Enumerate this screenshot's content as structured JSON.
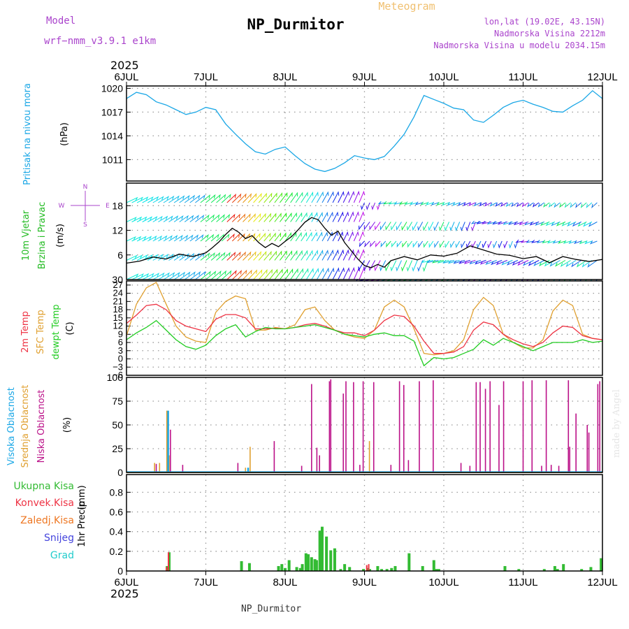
{
  "header": {
    "model_label": "Model",
    "model_name": "wrf−nmm_v3.9.1  e1km",
    "title": "NP_Durmitor",
    "chart_kind": "Meteogram",
    "lonlat": "lon,lat (19.02E, 43.15N)",
    "altitude": "Nadmorska Visina 2212m",
    "altitude_model": "Nadmorska Visina u modelu 2034.15m",
    "footer_station": "NP_Durmitor",
    "credit": "made by Angel"
  },
  "colors": {
    "pressure": "#1aa7e6",
    "wind_speed_label": "#22bb22",
    "temp2m": "#ee3344",
    "sfc": "#e0a030",
    "dewpt": "#22cc22",
    "high_cloud": "#1aa7e6",
    "mid_cloud": "#e0a030",
    "low_cloud": "#bb1188",
    "total_precip": "#33bb33",
    "conv_precip": "#ee3344",
    "frozen": "#ee7722",
    "snow": "#4444dd",
    "hail": "#22cccc",
    "purple_text": "#aa44cc",
    "title_orange": "#f0c070"
  },
  "chart_data": [
    {
      "panel": "pressure",
      "type": "line",
      "year": "2025",
      "x_ticks": [
        "6JUL",
        "7JUL",
        "8JUL",
        "9JUL",
        "10JUL",
        "11JUL",
        "12JUL"
      ],
      "ylabel_title": "Pritisak na nivou mora",
      "ylabel_unit": "(hPa)",
      "ylim": [
        1008.3,
        1020.3
      ],
      "y_ticks": [
        1011,
        1014,
        1017,
        1020
      ],
      "grid": true,
      "series": [
        {
          "name": "Pritisak na nivou mora",
          "x": [
            0,
            3,
            6,
            9,
            12,
            15,
            18,
            21,
            24,
            27,
            30,
            33,
            36,
            39,
            42,
            45,
            48,
            51,
            54,
            57,
            60,
            63,
            66,
            69,
            72,
            75,
            78,
            81,
            84,
            87,
            90,
            93,
            96,
            99,
            102,
            105,
            108,
            111,
            114,
            117,
            120,
            123,
            126,
            129,
            132,
            135,
            138,
            141,
            144
          ],
          "values": [
            1018.7,
            1019.5,
            1019.2,
            1018.3,
            1017.9,
            1017.3,
            1016.7,
            1017.0,
            1017.6,
            1017.3,
            1015.5,
            1014.2,
            1013.0,
            1012.0,
            1011.7,
            1012.3,
            1012.6,
            1011.5,
            1010.5,
            1009.8,
            1009.5,
            1009.9,
            1010.6,
            1011.5,
            1011.2,
            1011.0,
            1011.4,
            1012.7,
            1014.2,
            1016.4,
            1019.1,
            1018.6,
            1018.1,
            1017.5,
            1017.3,
            1016.0,
            1015.7,
            1016.6,
            1017.6,
            1018.2,
            1018.5,
            1018.0,
            1017.6,
            1017.1,
            1017.0,
            1017.8,
            1018.5,
            1019.7,
            1018.7
          ]
        }
      ]
    },
    {
      "panel": "wind",
      "type": "line",
      "ylabel_title": "10m Vjetar",
      "ylabel_sub": "Brzina i Pravac",
      "ylabel_unit": "(m/s)",
      "ylim": [
        0,
        23.5
      ],
      "y_ticks": [
        6,
        12,
        18
      ],
      "y_tick_bottom": "30",
      "compass": [
        "N",
        "W",
        "E",
        "S"
      ],
      "grid": true,
      "series": [
        {
          "name": "Brzina",
          "x": [
            0,
            4,
            8,
            12,
            16,
            20,
            24,
            26,
            28,
            30,
            32,
            34,
            36,
            38,
            40,
            42,
            44,
            46,
            48,
            50,
            52,
            54,
            56,
            58,
            60,
            62,
            64,
            66,
            68,
            70,
            72,
            74,
            76,
            78,
            80,
            84,
            88,
            92,
            96,
            100,
            104,
            108,
            112,
            116,
            120,
            124,
            128,
            132,
            136,
            140,
            144
          ],
          "values": [
            4.0,
            4.5,
            5.5,
            5.0,
            6.2,
            5.6,
            6.5,
            7.8,
            9.2,
            11.0,
            12.5,
            11.5,
            10.0,
            10.7,
            9.0,
            7.8,
            8.8,
            8.0,
            9.3,
            10.5,
            12.2,
            14.0,
            15.1,
            14.6,
            12.5,
            10.8,
            11.8,
            9.0,
            7.0,
            5.0,
            3.4,
            2.9,
            3.7,
            3.0,
            4.6,
            5.6,
            4.8,
            6.0,
            5.7,
            6.4,
            8.2,
            7.2,
            6.2,
            5.9,
            5.1,
            5.6,
            4.1,
            5.6,
            4.9,
            4.4,
            4.9
          ]
        }
      ]
    },
    {
      "panel": "temperature",
      "type": "line",
      "ylabel_titles": [
        "2m Temp",
        "SFC Temp",
        "dewpt Temp"
      ],
      "ylabel_unit": "(C)",
      "ylim": [
        -6,
        28.5
      ],
      "y_ticks": [
        -6,
        -3,
        0,
        3,
        6,
        9,
        12,
        15,
        18,
        21,
        24,
        27
      ],
      "grid": true,
      "series": [
        {
          "name": "2m Temp",
          "x": [
            0,
            3,
            6,
            9,
            12,
            15,
            18,
            21,
            24,
            27,
            30,
            33,
            36,
            39,
            42,
            45,
            48,
            51,
            54,
            57,
            60,
            63,
            66,
            69,
            72,
            75,
            78,
            81,
            84,
            87,
            90,
            93,
            96,
            99,
            102,
            105,
            108,
            111,
            114,
            117,
            120,
            123,
            126,
            129,
            132,
            135,
            138,
            141,
            144
          ],
          "values": [
            13.0,
            16.0,
            19.5,
            20.0,
            18.0,
            14.0,
            12.0,
            11.0,
            10.0,
            14.5,
            16.2,
            16.2,
            15.0,
            11.0,
            11.0,
            11.2,
            11.0,
            11.5,
            12.5,
            13.0,
            12.0,
            10.5,
            9.5,
            9.5,
            8.5,
            10.5,
            14.0,
            16.0,
            15.5,
            12.0,
            6.5,
            2.0,
            2.0,
            2.5,
            4.5,
            10.5,
            13.5,
            12.5,
            9.0,
            7.0,
            5.5,
            4.5,
            6.0,
            9.5,
            12.0,
            11.5,
            8.5,
            7.5,
            7.0
          ]
        },
        {
          "name": "SFC Temp",
          "x": [
            0,
            3,
            6,
            9,
            12,
            15,
            18,
            21,
            24,
            27,
            30,
            33,
            36,
            39,
            42,
            45,
            48,
            51,
            54,
            57,
            60,
            63,
            66,
            69,
            72,
            75,
            78,
            81,
            84,
            87,
            90,
            93,
            96,
            99,
            102,
            105,
            108,
            111,
            114,
            117,
            120,
            123,
            126,
            129,
            132,
            135,
            138,
            141,
            144
          ],
          "values": [
            8.5,
            20.0,
            26.0,
            28.0,
            20.0,
            12.0,
            8.0,
            6.5,
            6.0,
            17.0,
            21.0,
            23.0,
            22.0,
            10.5,
            10.5,
            11.5,
            11.0,
            12.5,
            18.0,
            19.0,
            14.0,
            10.5,
            9.0,
            8.0,
            7.5,
            10.5,
            19.0,
            21.5,
            19.0,
            11.0,
            2.0,
            1.5,
            2.0,
            3.0,
            7.0,
            18.0,
            22.5,
            19.5,
            9.0,
            6.0,
            4.0,
            4.0,
            7.0,
            17.5,
            21.5,
            19.5,
            9.0,
            7.5,
            7.0
          ]
        },
        {
          "name": "dewpt Temp",
          "x": [
            0,
            3,
            6,
            9,
            12,
            15,
            18,
            21,
            24,
            27,
            30,
            33,
            36,
            39,
            42,
            45,
            48,
            51,
            54,
            57,
            60,
            63,
            66,
            69,
            72,
            75,
            78,
            81,
            84,
            87,
            90,
            93,
            96,
            99,
            102,
            105,
            108,
            111,
            114,
            117,
            120,
            123,
            126,
            129,
            132,
            135,
            138,
            141,
            144
          ],
          "values": [
            7.0,
            9.5,
            11.5,
            14.0,
            10.5,
            7.0,
            4.5,
            3.5,
            5.0,
            8.5,
            11.0,
            12.5,
            8.0,
            10.0,
            11.5,
            11.0,
            11.0,
            11.5,
            12.0,
            12.5,
            11.5,
            10.5,
            9.0,
            8.5,
            8.0,
            9.0,
            9.5,
            8.5,
            8.5,
            6.5,
            -2.5,
            0.5,
            0.0,
            0.5,
            2.0,
            3.5,
            7.0,
            5.0,
            7.5,
            6.0,
            4.5,
            3.0,
            4.5,
            6.0,
            6.0,
            6.0,
            7.0,
            6.0,
            6.5
          ]
        }
      ]
    },
    {
      "panel": "clouds",
      "type": "bar",
      "ylabel_titles": [
        "Visoka Oblacnost",
        "Srednja Oblacnost",
        "Niska Oblacnost"
      ],
      "ylabel_unit": "(%)",
      "ylim": [
        0,
        100
      ],
      "y_ticks": [
        0,
        25,
        50,
        75,
        100
      ],
      "grid": true,
      "series": [
        {
          "name": "Visoka Oblacnost",
          "x": [
            12.6,
            36.8
          ],
          "values": [
            65,
            5
          ]
        },
        {
          "name": "Srednja Oblacnost",
          "x": [
            8.5,
            10.0,
            12.2,
            12.9,
            36.0,
            37.4,
            73.5
          ],
          "values": [
            10,
            10,
            65,
            18,
            5,
            27,
            33
          ]
        },
        {
          "name": "Niska Oblacnost",
          "x": [
            9.0,
            13.3,
            17.0,
            33.7,
            44.7,
            53.0,
            56.0,
            57.6,
            58.4,
            61.4,
            61.8,
            65.6,
            66.4,
            68.7,
            70.6,
            71.6,
            74.8,
            80.0,
            82.6,
            83.9,
            85.3,
            88.6,
            92.8,
            101.2,
            103.9,
            105.8,
            107.0,
            108.6,
            110.0,
            112.7,
            114.1,
            120.0,
            122.7,
            125.6,
            127.0,
            128.5,
            130.8,
            133.7,
            134.1,
            136.0,
            139.4,
            139.9,
            142.6,
            143.2
          ],
          "values": [
            9,
            45,
            8,
            10,
            33,
            7,
            93,
            26,
            18,
            96,
            98,
            83,
            96,
            95,
            8,
            96,
            95,
            8,
            96,
            92,
            13,
            96,
            97,
            10,
            7,
            95,
            95,
            88,
            96,
            71,
            96,
            96,
            97,
            7,
            97,
            8,
            7,
            97,
            27,
            62,
            50,
            42,
            93,
            96
          ]
        }
      ]
    },
    {
      "panel": "precipitation",
      "type": "bar",
      "ylabel_title": "1hr Precip",
      "ylabel_unit": "(mm)",
      "legend": [
        "Ukupna Kisa",
        "Konvek.Kisa",
        "Zaledj.Kisa",
        "Snijeg",
        "Grad"
      ],
      "ylim": [
        0,
        0.98
      ],
      "y_ticks": [
        0,
        0.2,
        0.4,
        0.6,
        0.8
      ],
      "grid": true,
      "series": [
        {
          "name": "Ukupna Kisa",
          "x": [
            12.3,
            12.9,
            34.8,
            37.2,
            46.0,
            47.0,
            48.0,
            49.2,
            51.5,
            52.6,
            53.2,
            54.3,
            55.0,
            56.0,
            57.0,
            57.5,
            58.5,
            59.2,
            60.5,
            61.8,
            63.0,
            64.8,
            66.0,
            67.5,
            71.7,
            73.0,
            73.6,
            76.0,
            77.2,
            78.8,
            80.2,
            81.3,
            85.5,
            89.6,
            93.0,
            93.7,
            94.5,
            114.5,
            118.7,
            126.4,
            129.6,
            130.4,
            132.2,
            137.7,
            140.5,
            143.6
          ],
          "values": [
            0.05,
            0.19,
            0.1,
            0.08,
            0.05,
            0.07,
            0.03,
            0.11,
            0.04,
            0.03,
            0.07,
            0.18,
            0.17,
            0.14,
            0.12,
            0.11,
            0.41,
            0.45,
            0.35,
            0.21,
            0.23,
            0.02,
            0.07,
            0.04,
            0.02,
            0.03,
            0.02,
            0.05,
            0.02,
            0.02,
            0.03,
            0.05,
            0.18,
            0.05,
            0.11,
            0.02,
            0.02,
            0.05,
            0.02,
            0.02,
            0.05,
            0.02,
            0.07,
            0.02,
            0.04,
            0.13
          ]
        },
        {
          "name": "Konvek.Kisa",
          "x": [
            12.3,
            12.9,
            72.9,
            73.5
          ],
          "values": [
            0.04,
            0.19,
            0.06,
            0.07
          ]
        }
      ]
    }
  ]
}
